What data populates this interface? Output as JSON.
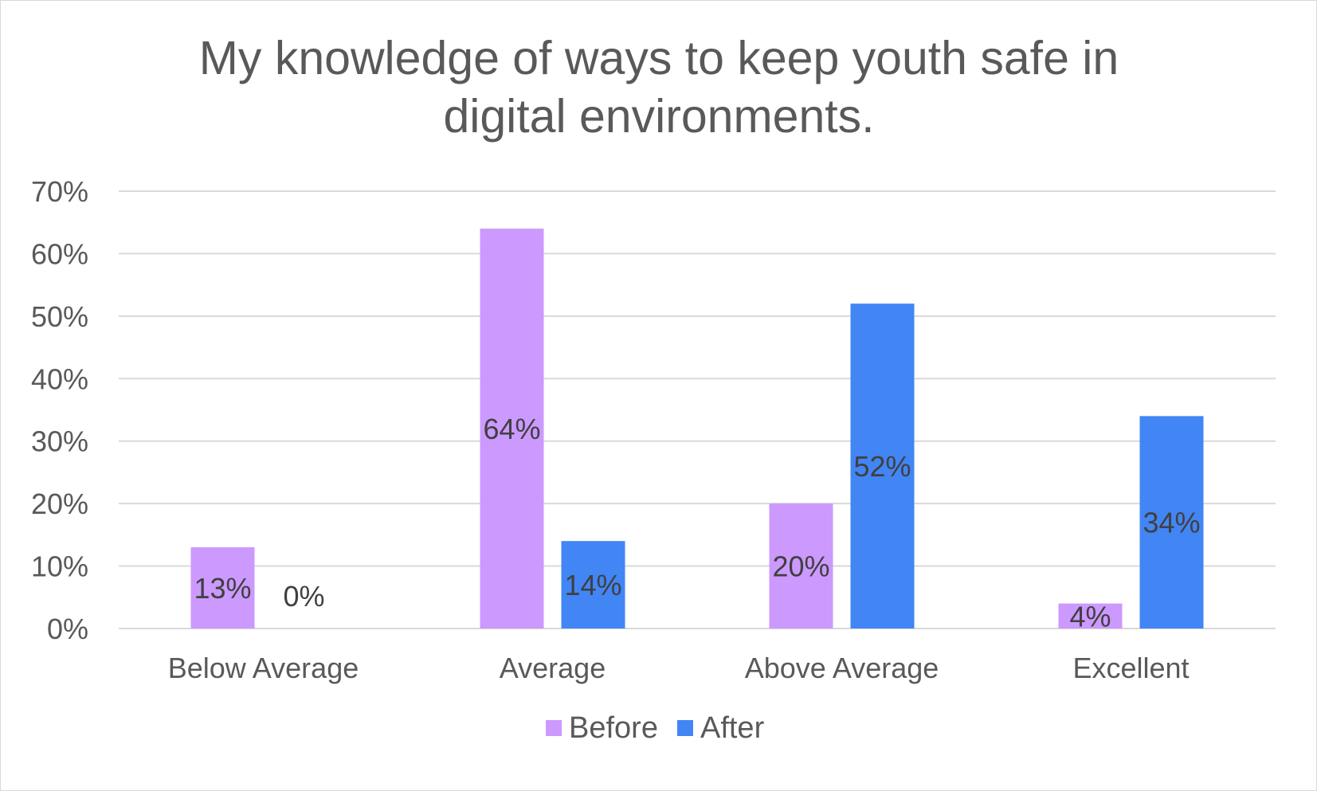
{
  "chart_data": {
    "type": "bar",
    "title": [
      "My knowledge of ways to keep youth safe in",
      "digital environments."
    ],
    "xlabel": "",
    "ylabel": "",
    "categories": [
      "Below Average",
      "Average",
      "Above Average",
      "Excellent"
    ],
    "series": [
      {
        "name": "Before",
        "color": "#cc99ff",
        "values": [
          13,
          64,
          20,
          4
        ],
        "labels": [
          "13%",
          "64%",
          "20%",
          "4%"
        ]
      },
      {
        "name": "After",
        "color": "#4285f4",
        "values": [
          0,
          14,
          52,
          34
        ],
        "labels": [
          "0%",
          "14%",
          "52%",
          "34%"
        ]
      }
    ],
    "ylim": [
      0,
      70
    ],
    "yticks": [
      0,
      10,
      20,
      30,
      40,
      50,
      60,
      70
    ],
    "ytick_labels": [
      "0%",
      "10%",
      "20%",
      "30%",
      "40%",
      "50%",
      "60%",
      "70%"
    ],
    "grid": true,
    "legend_position": "bottom"
  }
}
